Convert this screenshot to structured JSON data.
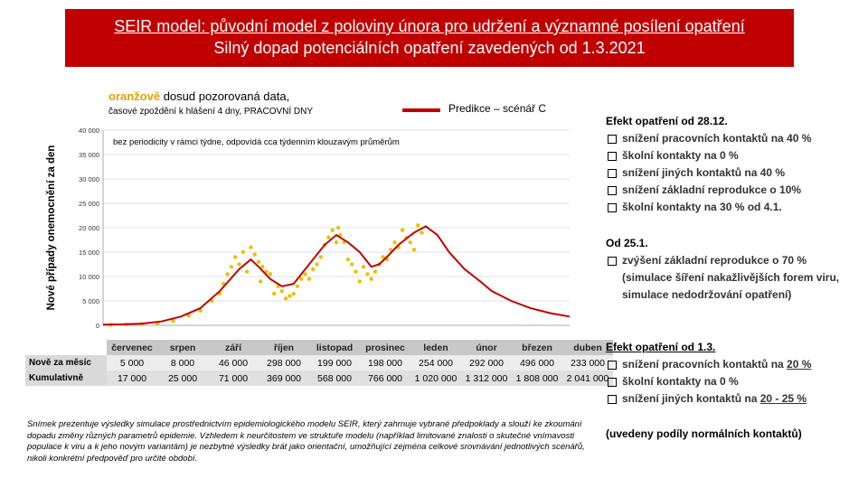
{
  "title": {
    "line1": "SEIR model: původní model z poloviny února pro udržení a významné posílení opatření",
    "line2": "Silný dopad potenciálních opatření zavedených od 1.3.2021"
  },
  "legend": {
    "observed_colored": "oranžově",
    "observed_text": "dosud pozorovaná data,",
    "observed_sub": "časové zpoždění k hlášení 4 dny, PRACOVNÍ DNY",
    "prediction": "Predikce – scénář C"
  },
  "chart_note": "bez periodicity v rámci týdne, odpovídá cca týdenním klouzavým průměrům",
  "chart_data": {
    "type": "line",
    "ylabel": "Nové případy onemocnění za den",
    "ylim": [
      0,
      40000
    ],
    "yticks": [
      "0",
      "5 000",
      "10 000",
      "15 000",
      "20 000",
      "25 000",
      "30 000",
      "35 000",
      "40 000"
    ],
    "grid": true,
    "colors": {
      "prediction": "#c00000",
      "observed": "#e8c200"
    },
    "series": [
      {
        "name": "Predikce – scénář C",
        "x": [
          0,
          0.5,
          1,
          1.5,
          2,
          2.5,
          3,
          3.2,
          3.5,
          3.8,
          4,
          4.3,
          4.6,
          4.9,
          5.1,
          5.3,
          5.7,
          6,
          6.3,
          6.6,
          6.9,
          7.1,
          7.3,
          7.6,
          8,
          8.3,
          8.6,
          8.9,
          9.3,
          9.7,
          10,
          10.5,
          11,
          11.5,
          12
        ],
        "values": [
          150,
          200,
          350,
          800,
          1800,
          3500,
          7000,
          8800,
          11500,
          13500,
          12000,
          9500,
          8000,
          8500,
          10500,
          12500,
          16500,
          18500,
          17000,
          15000,
          12000,
          12500,
          14000,
          16500,
          19000,
          20300,
          18500,
          15000,
          11500,
          9000,
          7000,
          5000,
          3500,
          2500,
          1800
        ]
      },
      {
        "name": "observed",
        "x": [
          0.2,
          0.6,
          1.0,
          1.4,
          1.8,
          2.2,
          2.5,
          2.8,
          3.0,
          3.1,
          3.2,
          3.3,
          3.4,
          3.5,
          3.6,
          3.7,
          3.8,
          3.9,
          4.0,
          4.05,
          4.1,
          4.2,
          4.3,
          4.4,
          4.5,
          4.6,
          4.7,
          4.8,
          4.9,
          5.0,
          5.1,
          5.2,
          5.3,
          5.4,
          5.5,
          5.6,
          5.7,
          5.8,
          5.9,
          6.0,
          6.05,
          6.1,
          6.2,
          6.3,
          6.4,
          6.5,
          6.6,
          6.7,
          6.8,
          6.9,
          7.0,
          7.1,
          7.2,
          7.3,
          7.4,
          7.5,
          7.6,
          7.7,
          7.8,
          7.9,
          8.0,
          8.1,
          8.2
        ],
        "values": [
          100,
          150,
          250,
          400,
          900,
          2000,
          3000,
          5000,
          6500,
          8500,
          10500,
          12000,
          14000,
          12500,
          15000,
          11000,
          16000,
          14500,
          13000,
          9000,
          12000,
          11000,
          10500,
          6500,
          8000,
          7000,
          5500,
          6000,
          6500,
          8000,
          9500,
          10500,
          9500,
          11500,
          12500,
          14000,
          16500,
          18000,
          19500,
          17000,
          20000,
          18500,
          17000,
          13500,
          12500,
          11000,
          9000,
          12000,
          10500,
          9500,
          11000,
          12500,
          14000,
          13500,
          15500,
          17000,
          16000,
          19500,
          18000,
          17000,
          15500,
          20500,
          19000
        ]
      }
    ]
  },
  "table": {
    "months": [
      "červenec",
      "srpen",
      "září",
      "říjen",
      "listopad",
      "prosinec",
      "leden",
      "únor",
      "březen",
      "duben"
    ],
    "rows": [
      {
        "label": "Nově za měsíc",
        "values": [
          "5 000",
          "8 000",
          "46 000",
          "298 000",
          "199 000",
          "198 000",
          "254 000",
          "292 000",
          "496 000",
          "233 000"
        ]
      },
      {
        "label": "Kumulativně",
        "values": [
          "17 000",
          "25 000",
          "71 000",
          "369 000",
          "568 000",
          "766 000",
          "1 020 000",
          "1 312 000",
          "1 808 000",
          "2 041 000"
        ]
      }
    ]
  },
  "note": "Snímek prezentuje výsledky simulace prostřednictvím epidemiologického modelu SEIR, který zahrnuje vybrané předpoklady a slouží ke zkoumání dopadu změny různých parametrů epidemie. Vzhledem k neurčitostem ve struktuře modelu (například limitované znalosti o skutečné vnímavosti populace k viru a k jeho novým variantám) je nezbytné výsledky brát jako orientační, umožňující zejména celkové srovnávání jednotlivých scénářů, nikoli konkrétní předpověď pro určité období.",
  "side": {
    "block1_header": "Efekt opatření od 28.12.",
    "block1_items": [
      "snížení pracovních kontaktů na 40 %",
      "školní kontakty na 0 %",
      "snížení jiných kontaktů na 40 %",
      "snížení základní reprodukce o 10%",
      "školní kontakty na 30 % od 4.1."
    ],
    "block2_header": "Od 25.1.",
    "block2_item": "zvýšení základní reprodukce o 70 % (simulace šíření nakažlivějších forem viru, simulace nedodržování opatření)",
    "block3_header": "Efekt opatření od 1.3.",
    "block3_items": [
      {
        "pre": "snížení pracovních kontaktů na ",
        "val": "20 %"
      },
      {
        "pre": "školní kontakty na 0 %",
        "val": ""
      },
      {
        "pre": "snížení jiných kontaktů na ",
        "val": "20 - 25 %"
      }
    ],
    "block4": "(uvedeny podíly normálních kontaktů)"
  }
}
